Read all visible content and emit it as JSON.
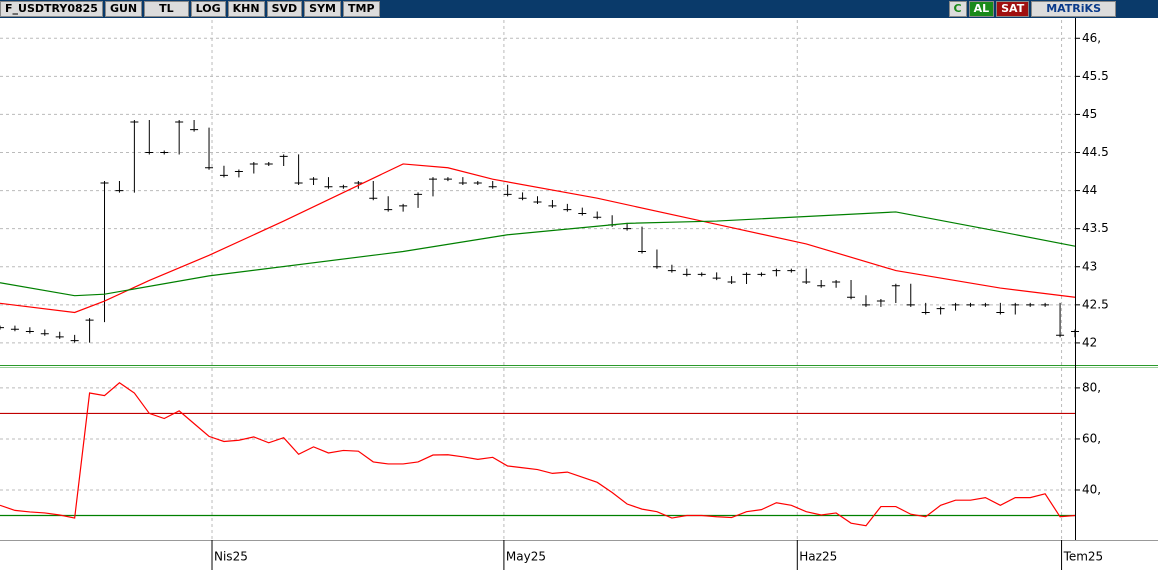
{
  "toolbar": {
    "symbol": "F_USDTRY0825",
    "buttons": [
      "GUN",
      "TL",
      "LOG",
      "KHN",
      "SVD",
      "SYM",
      "TMP"
    ],
    "right_buttons": [
      "C",
      "AL",
      "SAT",
      "MATRiKS"
    ]
  },
  "chart_data": [
    {
      "type": "line",
      "xlim": [
        0,
        72
      ],
      "ylim": [
        41.71,
        46.24
      ],
      "yticks": [
        {
          "value": 46,
          "label": "46,"
        },
        45.5,
        45,
        44.5,
        44,
        43.5,
        43,
        42.5,
        42
      ],
      "grid": true,
      "series": [
        {
          "style": "ticks",
          "color": "#000000",
          "x": [
            0,
            1,
            2,
            3,
            4,
            5,
            6,
            7,
            8,
            9,
            10,
            11,
            12,
            13,
            14,
            15,
            16,
            17,
            18,
            19,
            20,
            21,
            22,
            23,
            24,
            25,
            26,
            27,
            28,
            29,
            30,
            31,
            32,
            33,
            34,
            35,
            36,
            37,
            38,
            39,
            40,
            41,
            42,
            43,
            44,
            45,
            46,
            47,
            48,
            49,
            50,
            51,
            52,
            53,
            54,
            55,
            56,
            57,
            58,
            59,
            60,
            61,
            62,
            63,
            64,
            65,
            66,
            67,
            68,
            69,
            70,
            71,
            72
          ],
          "values": [
            42.2,
            42.18,
            42.15,
            42.12,
            42.08,
            42.03,
            42.3,
            44.1,
            44.0,
            44.9,
            44.5,
            44.5,
            44.9,
            44.8,
            44.3,
            44.2,
            44.25,
            44.35,
            44.35,
            44.45,
            44.1,
            44.15,
            44.05,
            44.05,
            44.1,
            43.9,
            43.75,
            43.8,
            43.95,
            44.15,
            44.15,
            44.1,
            44.1,
            44.05,
            43.95,
            43.9,
            43.85,
            43.8,
            43.75,
            43.7,
            43.65,
            43.55,
            43.5,
            43.2,
            43.0,
            42.95,
            42.9,
            42.9,
            42.85,
            42.8,
            42.9,
            42.9,
            42.95,
            42.95,
            42.8,
            42.75,
            42.8,
            42.6,
            42.5,
            42.55,
            42.75,
            42.5,
            42.4,
            42.45,
            42.5,
            42.5,
            42.5,
            42.4,
            42.5,
            42.5,
            42.5,
            42.1,
            42.15
          ]
        },
        {
          "style": "line",
          "color": "#ff0000",
          "x": [
            0,
            5,
            7,
            10,
            14,
            19,
            27,
            30,
            33,
            40,
            47,
            54,
            60,
            67,
            72
          ],
          "values": [
            42.52,
            42.4,
            42.55,
            42.82,
            43.15,
            43.6,
            44.35,
            44.3,
            44.15,
            43.9,
            43.6,
            43.3,
            42.95,
            42.72,
            42.6
          ]
        },
        {
          "style": "line",
          "color": "#008000",
          "x": [
            0,
            5,
            7,
            14,
            27,
            34,
            42,
            48,
            60,
            67,
            72
          ],
          "values": [
            42.79,
            42.62,
            42.64,
            42.88,
            43.2,
            43.42,
            43.57,
            43.6,
            43.72,
            43.46,
            43.27
          ]
        }
      ]
    },
    {
      "type": "line",
      "xlim": [
        0,
        72
      ],
      "ylim": [
        20.4,
        87.8
      ],
      "yticks": [
        {
          "value": 80,
          "label": "80,"
        },
        {
          "value": 60,
          "label": "60,"
        },
        {
          "value": 40,
          "label": "40,"
        }
      ],
      "grid": true,
      "xticks": [
        {
          "value": 14.2,
          "label": "Nis25"
        },
        {
          "value": 33.75,
          "label": "May25"
        },
        {
          "value": 53.4,
          "label": "Haz25"
        },
        {
          "value": 71.1,
          "label": "Tem25"
        }
      ],
      "hlines": [
        {
          "value": 70,
          "color": "#c00000"
        },
        {
          "value": 30,
          "color": "#008000"
        }
      ],
      "series": [
        {
          "style": "line",
          "color": "#ff0000",
          "x": [
            0,
            1,
            2,
            3,
            4,
            5,
            6,
            7,
            8,
            9,
            10,
            11,
            12,
            13,
            14,
            15,
            16,
            17,
            18,
            19,
            20,
            21,
            22,
            23,
            24,
            25,
            26,
            27,
            28,
            29,
            30,
            31,
            32,
            33,
            34,
            35,
            36,
            37,
            38,
            39,
            40,
            41,
            42,
            43,
            44,
            45,
            46,
            47,
            48,
            49,
            50,
            51,
            52,
            53,
            54,
            55,
            56,
            57,
            58,
            59,
            60,
            61,
            62,
            63,
            64,
            65,
            66,
            67,
            68,
            69,
            70,
            71,
            72
          ],
          "values": [
            34,
            32,
            31.4,
            31,
            30.2,
            29,
            78,
            77,
            82,
            78,
            70,
            68,
            71,
            66,
            61,
            59,
            59.5,
            60.8,
            58.5,
            60.5,
            54,
            56.9,
            54.5,
            55.5,
            55.2,
            51,
            50.2,
            50.2,
            51,
            53.7,
            53.8,
            53,
            52,
            52.8,
            49.4,
            48.7,
            48,
            46.5,
            47,
            45,
            43,
            39,
            34.5,
            32.5,
            31.5,
            29,
            30,
            30,
            29.5,
            29.2,
            31.5,
            32.3,
            35,
            34,
            31.5,
            30.2,
            31,
            27,
            26,
            33.5,
            33.5,
            30.5,
            29.5,
            34,
            36,
            36,
            37,
            34,
            37,
            37,
            38.5,
            29.5,
            30
          ]
        }
      ]
    }
  ]
}
